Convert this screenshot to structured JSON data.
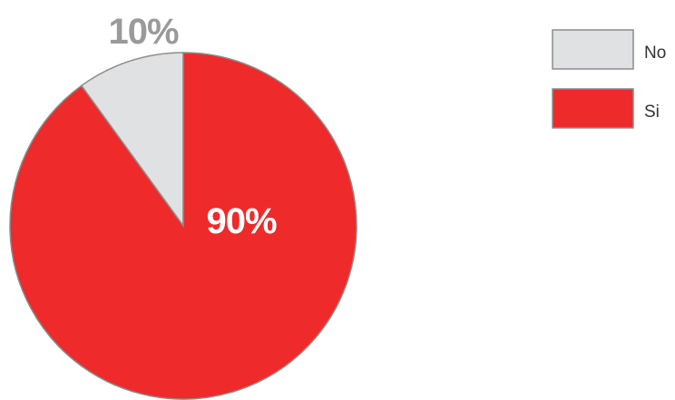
{
  "chart_data": {
    "type": "pie",
    "categories": [
      "No",
      "Si"
    ],
    "values": [
      10,
      90
    ],
    "colors": [
      "#dfe1e3",
      "#ee2a2a"
    ],
    "data_labels": [
      "10%",
      "90%"
    ],
    "label_colors": [
      "#9a9a9a",
      "#ffffff"
    ],
    "legend": {
      "placement": "top-right",
      "entries": [
        {
          "label": "No",
          "color": "#dfe1e3"
        },
        {
          "label": "Si",
          "color": "#ee2a2a"
        }
      ]
    }
  }
}
